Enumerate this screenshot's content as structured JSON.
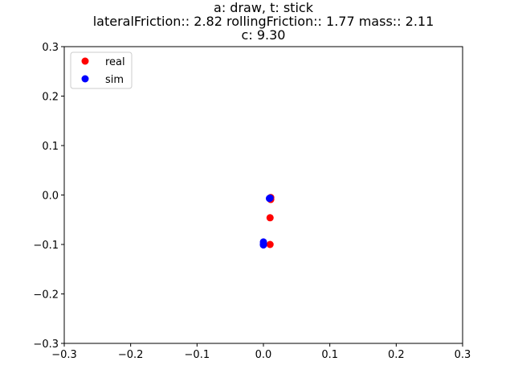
{
  "chart_data": {
    "type": "scatter",
    "title_lines": [
      "a: draw, t: stick",
      "lateralFriction:: 2.82 rollingFriction:: 1.77 mass:: 2.11",
      "c: 9.30"
    ],
    "xlabel": "",
    "ylabel": "",
    "xlim": [
      -0.3,
      0.3
    ],
    "ylim": [
      -0.3,
      0.3
    ],
    "x_ticks": [
      -0.3,
      -0.2,
      -0.1,
      0.0,
      0.1,
      0.2,
      0.3
    ],
    "y_ticks": [
      -0.3,
      -0.2,
      -0.1,
      0.0,
      0.1,
      0.2,
      0.3
    ],
    "x_tick_labels": [
      "−0.3",
      "−0.2",
      "−0.1",
      "0.0",
      "0.1",
      "0.2",
      "0.3"
    ],
    "y_tick_labels": [
      "−0.3",
      "−0.2",
      "−0.1",
      "0.0",
      "0.1",
      "0.2",
      "0.3"
    ],
    "grid": false,
    "legend_position": "top-left",
    "series": [
      {
        "name": "real",
        "color": "#ff0000",
        "points": [
          [
            0.011,
            -0.005
          ],
          [
            0.011,
            -0.009
          ],
          [
            0.01,
            -0.046
          ],
          [
            0.01,
            -0.1
          ],
          [
            0.01,
            -0.007
          ]
        ]
      },
      {
        "name": "sim",
        "color": "#0000ff",
        "points": [
          [
            0.009,
            -0.007
          ],
          [
            0.01,
            -0.006
          ],
          [
            0.0,
            -0.095
          ],
          [
            0.0,
            -0.099
          ],
          [
            0.0,
            -0.101
          ]
        ]
      }
    ]
  }
}
